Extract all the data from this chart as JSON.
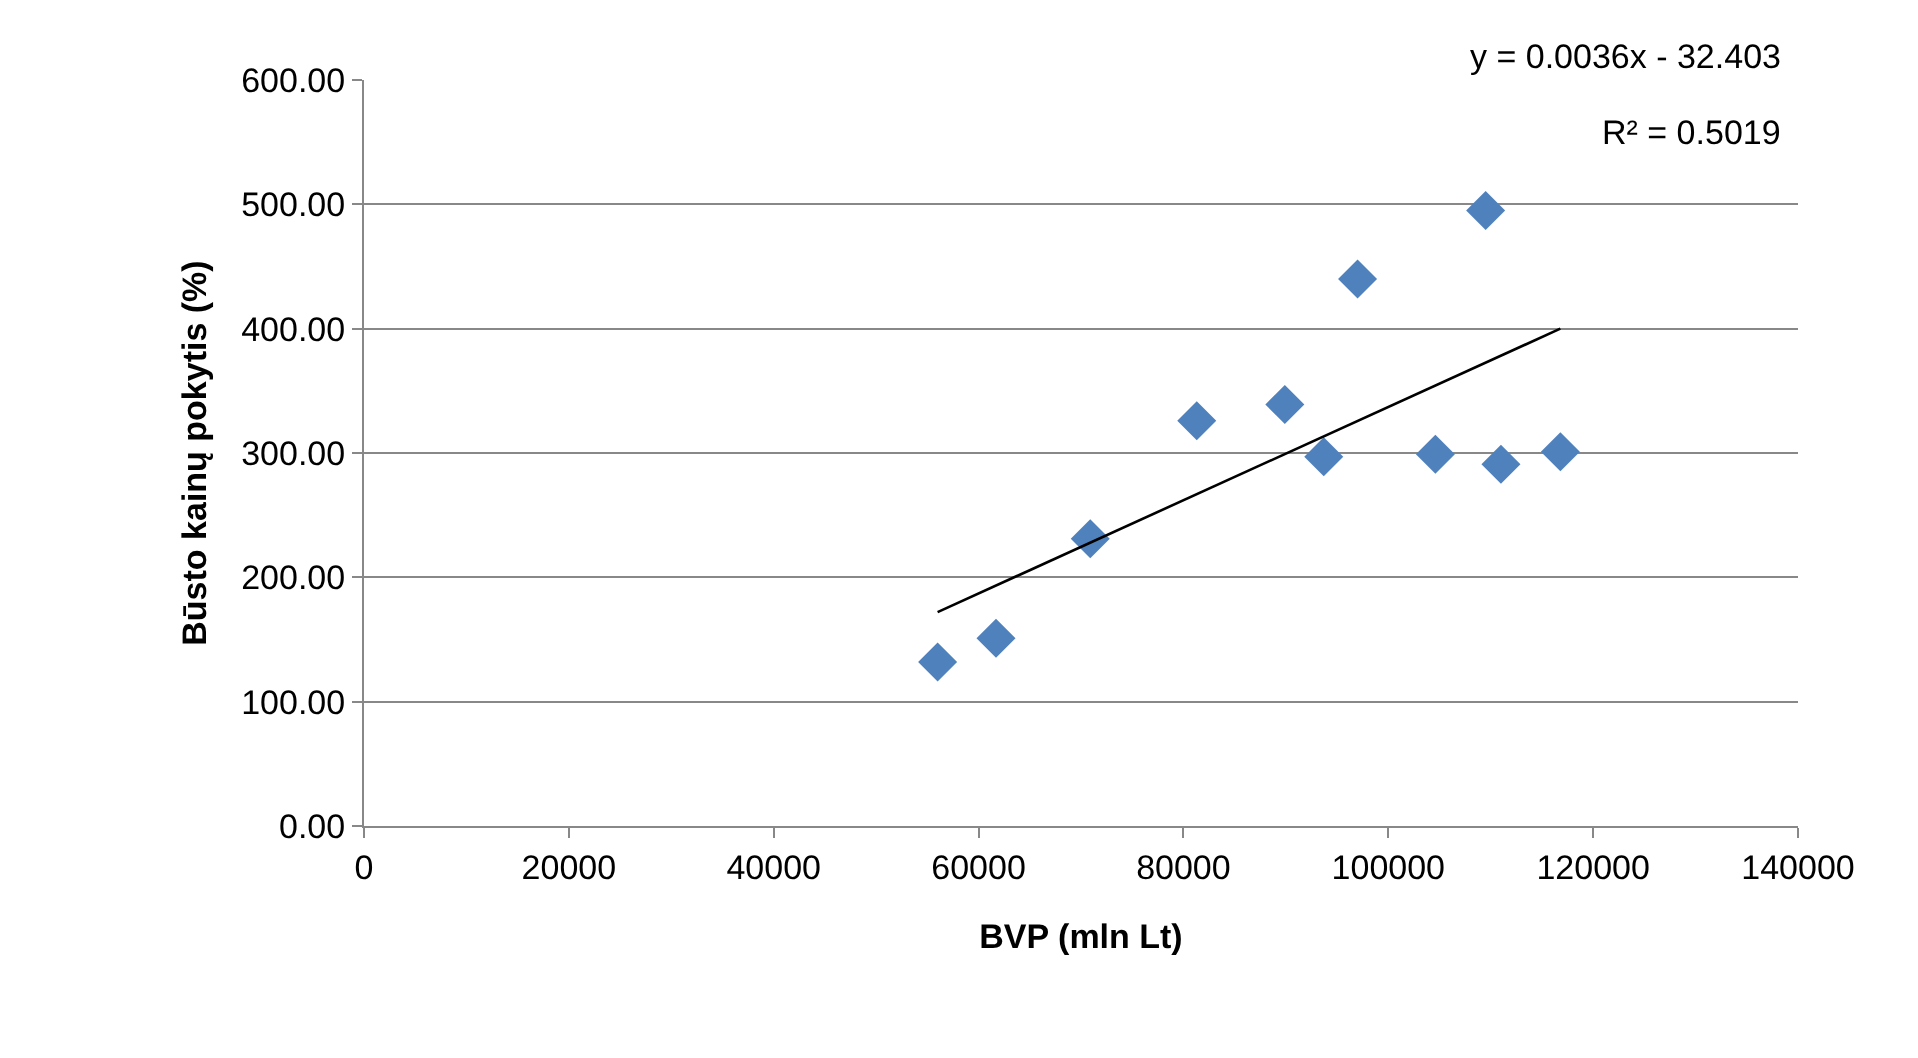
{
  "chart_data": {
    "type": "scatter",
    "xlabel": "BVP (mln Lt)",
    "ylabel": "Būsto kainų pokytis (%)",
    "xlim": [
      0,
      140000
    ],
    "xticks": [
      0,
      20000,
      40000,
      60000,
      80000,
      100000,
      120000,
      140000
    ],
    "ylim": [
      0,
      600
    ],
    "yticks": [
      {
        "value": 0,
        "label": "0.00"
      },
      {
        "value": 100,
        "label": "100.00"
      },
      {
        "value": 200,
        "label": "200.00"
      },
      {
        "value": 300,
        "label": "300.00"
      },
      {
        "value": 400,
        "label": "400.00"
      },
      {
        "value": 500,
        "label": "500.00"
      },
      {
        "value": 600,
        "label": "600.00"
      }
    ],
    "grid": "y",
    "marker": "diamond",
    "series": [
      {
        "color": "#4f81bd",
        "x": [
          56000,
          61700,
          70900,
          81300,
          89900,
          93700,
          97000,
          104600,
          109500,
          111000,
          116800
        ],
        "values": [
          132,
          151,
          231,
          326,
          339,
          297,
          440,
          299,
          495,
          291,
          301
        ]
      },
      {
        "type": "line",
        "color": "#000000",
        "marker": "none",
        "line_style": "solid",
        "x": [
          56000,
          116800
        ],
        "values": [
          172,
          400
        ]
      }
    ],
    "annotations": [
      "y = 0.0036x - 32.403",
      "R² = 0.5019"
    ]
  }
}
